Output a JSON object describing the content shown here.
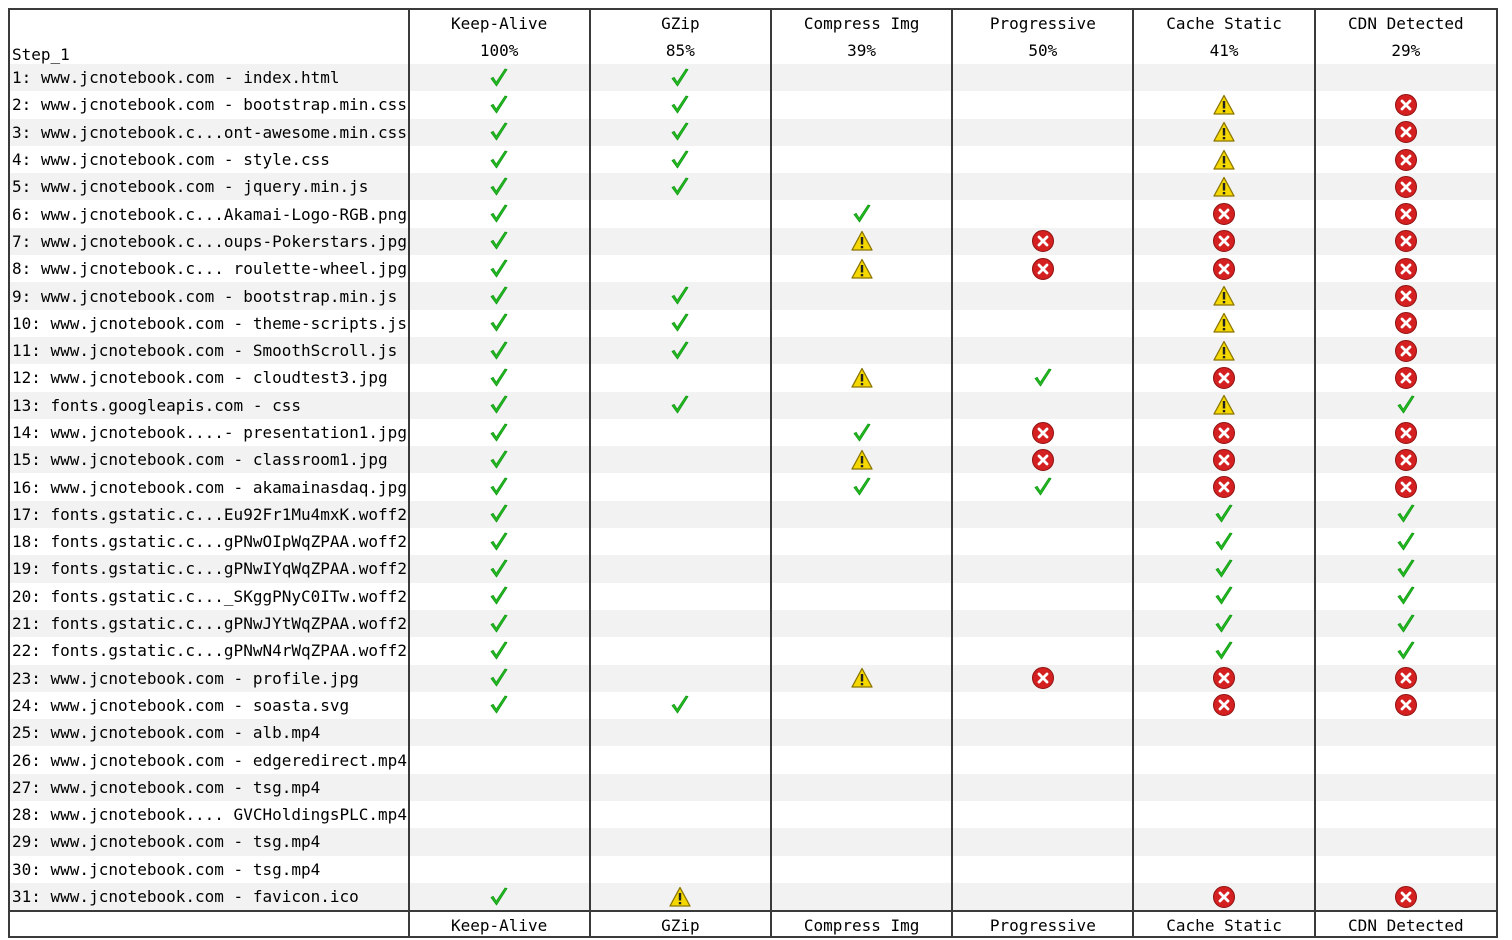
{
  "step_label": "Step_1",
  "columns": [
    {
      "key": "keep_alive",
      "label": "Keep-Alive",
      "score": "100%"
    },
    {
      "key": "gzip",
      "label": "GZip",
      "score": "85%"
    },
    {
      "key": "compress_img",
      "label": "Compress Img",
      "score": "39%"
    },
    {
      "key": "progressive",
      "label": "Progressive",
      "score": "50%"
    },
    {
      "key": "cache_static",
      "label": "Cache Static",
      "score": "41%"
    },
    {
      "key": "cdn_detected",
      "label": "CDN Detected",
      "score": "29%"
    }
  ],
  "rows": [
    {
      "url": "1: www.jcnotebook.com - index.html",
      "status": [
        "pass",
        "pass",
        "",
        "",
        "",
        ""
      ]
    },
    {
      "url": "2: www.jcnotebook.com - bootstrap.min.css",
      "status": [
        "pass",
        "pass",
        "",
        "",
        "warn",
        "fail"
      ]
    },
    {
      "url": "3: www.jcnotebook.c...ont-awesome.min.css",
      "status": [
        "pass",
        "pass",
        "",
        "",
        "warn",
        "fail"
      ]
    },
    {
      "url": "4: www.jcnotebook.com - style.css",
      "status": [
        "pass",
        "pass",
        "",
        "",
        "warn",
        "fail"
      ]
    },
    {
      "url": "5: www.jcnotebook.com - jquery.min.js",
      "status": [
        "pass",
        "pass",
        "",
        "",
        "warn",
        "fail"
      ]
    },
    {
      "url": "6: www.jcnotebook.c...Akamai-Logo-RGB.png",
      "status": [
        "pass",
        "",
        "pass",
        "",
        "fail",
        "fail"
      ]
    },
    {
      "url": "7: www.jcnotebook.c...oups-Pokerstars.jpg",
      "status": [
        "pass",
        "",
        "warn",
        "fail",
        "fail",
        "fail"
      ]
    },
    {
      "url": "8: www.jcnotebook.c... roulette-wheel.jpg",
      "status": [
        "pass",
        "",
        "warn",
        "fail",
        "fail",
        "fail"
      ]
    },
    {
      "url": "9: www.jcnotebook.com - bootstrap.min.js",
      "status": [
        "pass",
        "pass",
        "",
        "",
        "warn",
        "fail"
      ]
    },
    {
      "url": "10: www.jcnotebook.com - theme-scripts.js",
      "status": [
        "pass",
        "pass",
        "",
        "",
        "warn",
        "fail"
      ]
    },
    {
      "url": "11: www.jcnotebook.com - SmoothScroll.js",
      "status": [
        "pass",
        "pass",
        "",
        "",
        "warn",
        "fail"
      ]
    },
    {
      "url": "12: www.jcnotebook.com - cloudtest3.jpg",
      "status": [
        "pass",
        "",
        "warn",
        "pass",
        "fail",
        "fail"
      ]
    },
    {
      "url": "13: fonts.googleapis.com - css",
      "status": [
        "pass",
        "pass",
        "",
        "",
        "warn",
        "pass"
      ]
    },
    {
      "url": "14: www.jcnotebook....- presentation1.jpg",
      "status": [
        "pass",
        "",
        "pass",
        "fail",
        "fail",
        "fail"
      ]
    },
    {
      "url": "15: www.jcnotebook.com - classroom1.jpg",
      "status": [
        "pass",
        "",
        "warn",
        "fail",
        "fail",
        "fail"
      ]
    },
    {
      "url": "16: www.jcnotebook.com - akamainasdaq.jpg",
      "status": [
        "pass",
        "",
        "pass",
        "pass",
        "fail",
        "fail"
      ]
    },
    {
      "url": "17: fonts.gstatic.c...Eu92Fr1Mu4mxK.woff2",
      "status": [
        "pass",
        "",
        "",
        "",
        "pass",
        "pass"
      ]
    },
    {
      "url": "18: fonts.gstatic.c...gPNwOIpWqZPAA.woff2",
      "status": [
        "pass",
        "",
        "",
        "",
        "pass",
        "pass"
      ]
    },
    {
      "url": "19: fonts.gstatic.c...gPNwIYqWqZPAA.woff2",
      "status": [
        "pass",
        "",
        "",
        "",
        "pass",
        "pass"
      ]
    },
    {
      "url": "20: fonts.gstatic.c..._SKggPNyC0ITw.woff2",
      "status": [
        "pass",
        "",
        "",
        "",
        "pass",
        "pass"
      ]
    },
    {
      "url": "21: fonts.gstatic.c...gPNwJYtWqZPAA.woff2",
      "status": [
        "pass",
        "",
        "",
        "",
        "pass",
        "pass"
      ]
    },
    {
      "url": "22: fonts.gstatic.c...gPNwN4rWqZPAA.woff2",
      "status": [
        "pass",
        "",
        "",
        "",
        "pass",
        "pass"
      ]
    },
    {
      "url": "23: www.jcnotebook.com - profile.jpg",
      "status": [
        "pass",
        "",
        "warn",
        "fail",
        "fail",
        "fail"
      ]
    },
    {
      "url": "24: www.jcnotebook.com - soasta.svg",
      "status": [
        "pass",
        "pass",
        "",
        "",
        "fail",
        "fail"
      ]
    },
    {
      "url": "25: www.jcnotebook.com - alb.mp4",
      "status": [
        "",
        "",
        "",
        "",
        "",
        ""
      ]
    },
    {
      "url": "26: www.jcnotebook.com - edgeredirect.mp4",
      "status": [
        "",
        "",
        "",
        "",
        "",
        ""
      ]
    },
    {
      "url": "27: www.jcnotebook.com - tsg.mp4",
      "status": [
        "",
        "",
        "",
        "",
        "",
        ""
      ]
    },
    {
      "url": "28: www.jcnotebook.... GVCHoldingsPLC.mp4",
      "status": [
        "",
        "",
        "",
        "",
        "",
        ""
      ]
    },
    {
      "url": "29: www.jcnotebook.com - tsg.mp4",
      "status": [
        "",
        "",
        "",
        "",
        "",
        ""
      ]
    },
    {
      "url": "30: www.jcnotebook.com - tsg.mp4",
      "status": [
        "",
        "",
        "",
        "",
        "",
        ""
      ]
    },
    {
      "url": "31: www.jcnotebook.com - favicon.ico",
      "status": [
        "pass",
        "warn",
        "",
        "",
        "fail",
        "fail"
      ]
    }
  ],
  "icons": {
    "pass": {
      "name": "check-icon",
      "color": "#22bb22"
    },
    "warn": {
      "name": "warning-icon",
      "color": "#f5d800"
    },
    "fail": {
      "name": "error-icon",
      "color": "#d42020"
    }
  }
}
